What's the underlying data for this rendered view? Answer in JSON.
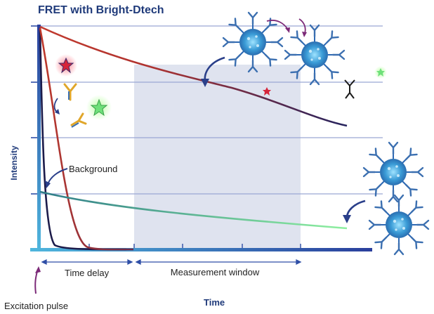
{
  "figure": {
    "title": "FRET with Bright-Dtech",
    "y_axis_label": "Intensity",
    "x_axis_label": "Time",
    "background_label": "Background",
    "time_delay_label": "Time delay",
    "measurement_window_label": "Measurement window",
    "excitation_label": "Excitation pulse"
  },
  "colors": {
    "axis": "#2e4ea6",
    "gridline": "#9aa6d4",
    "measurement_window": "#dfe3ef",
    "long_decay_start": "#c23a2e",
    "long_decay_end": "#25235e",
    "background_decay_start": "#2e7c88",
    "background_decay_end": "#8ef0a0",
    "fast_decay_navy": "#1c1b4a",
    "fast_decay_red": "#8a2538",
    "label_blue": "#1f3a7a",
    "excitation_arrow": "#7c2a78",
    "red_star": "#d6243a",
    "green_star": "#6fe07a",
    "antibody": "#3b6fb0",
    "nanoparticle": "#49a6d6"
  },
  "icons": {
    "red_star": "red-star-fluorophore-icon",
    "green_star": "green-star-fluorophore-icon",
    "antibody": "antibody-icon",
    "nanoparticle": "nanoparticle-conjugate-icon"
  }
}
